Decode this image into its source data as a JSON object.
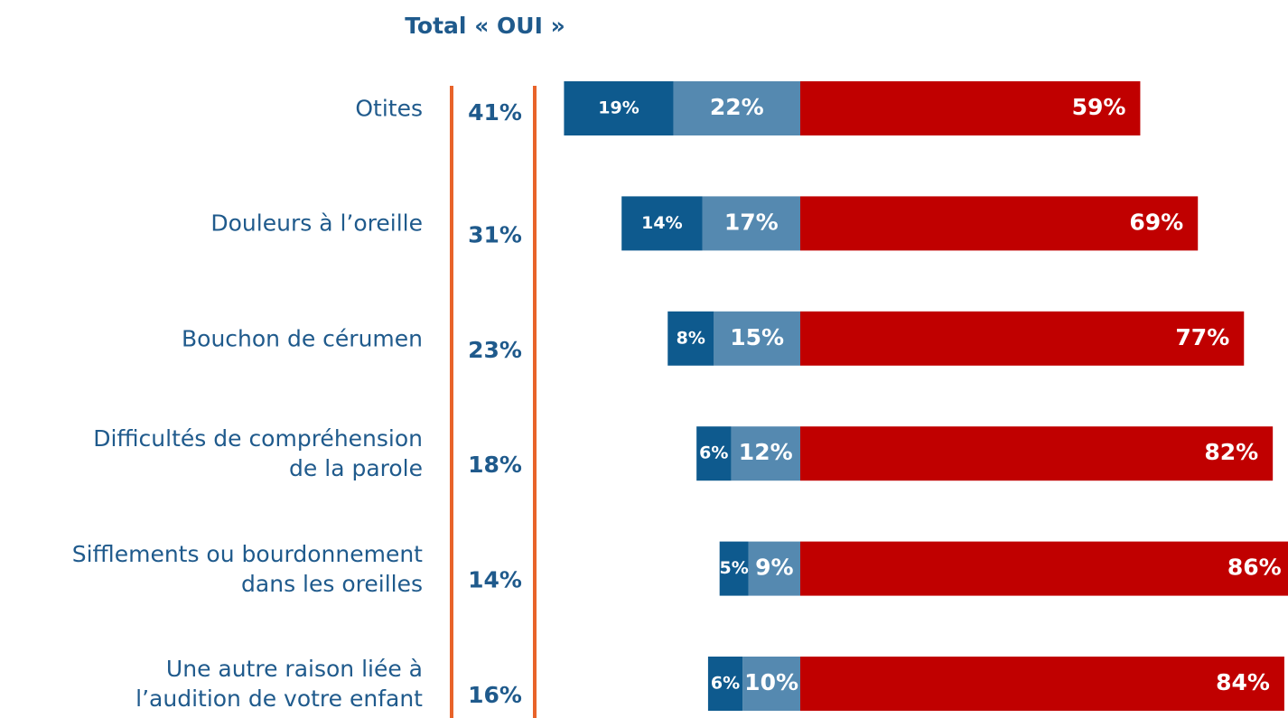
{
  "chart_data": {
    "type": "bar",
    "title": "Total « OUI »",
    "categories": [
      "Otites",
      "Douleurs à l’oreille",
      "Bouchon de cérumen",
      "Difficultés de compréhension\nde la parole",
      "Sifflements ou bourdonnement\ndans les oreilles",
      "Une autre raison liée à\nl’audition de votre enfant"
    ],
    "total_labels": [
      "41%",
      "31%",
      "23%",
      "18%",
      "14%",
      "16%"
    ],
    "series": [
      {
        "color": "#0e5a8e",
        "values": [
          19,
          14,
          8,
          6,
          5,
          6
        ],
        "value_labels": [
          "19%",
          "14%",
          "8%",
          "6%",
          "5%",
          "6%"
        ]
      },
      {
        "color": "#5589b0",
        "values": [
          22,
          17,
          15,
          12,
          9,
          10
        ],
        "value_labels": [
          "22%",
          "17%",
          "15%",
          "12%",
          "9%",
          "10%"
        ]
      },
      {
        "color": "#c00000",
        "values": [
          59,
          69,
          77,
          82,
          86,
          84
        ],
        "value_labels": [
          "59%",
          "69%",
          "77%",
          "82%",
          "86%",
          "84%"
        ]
      }
    ]
  }
}
